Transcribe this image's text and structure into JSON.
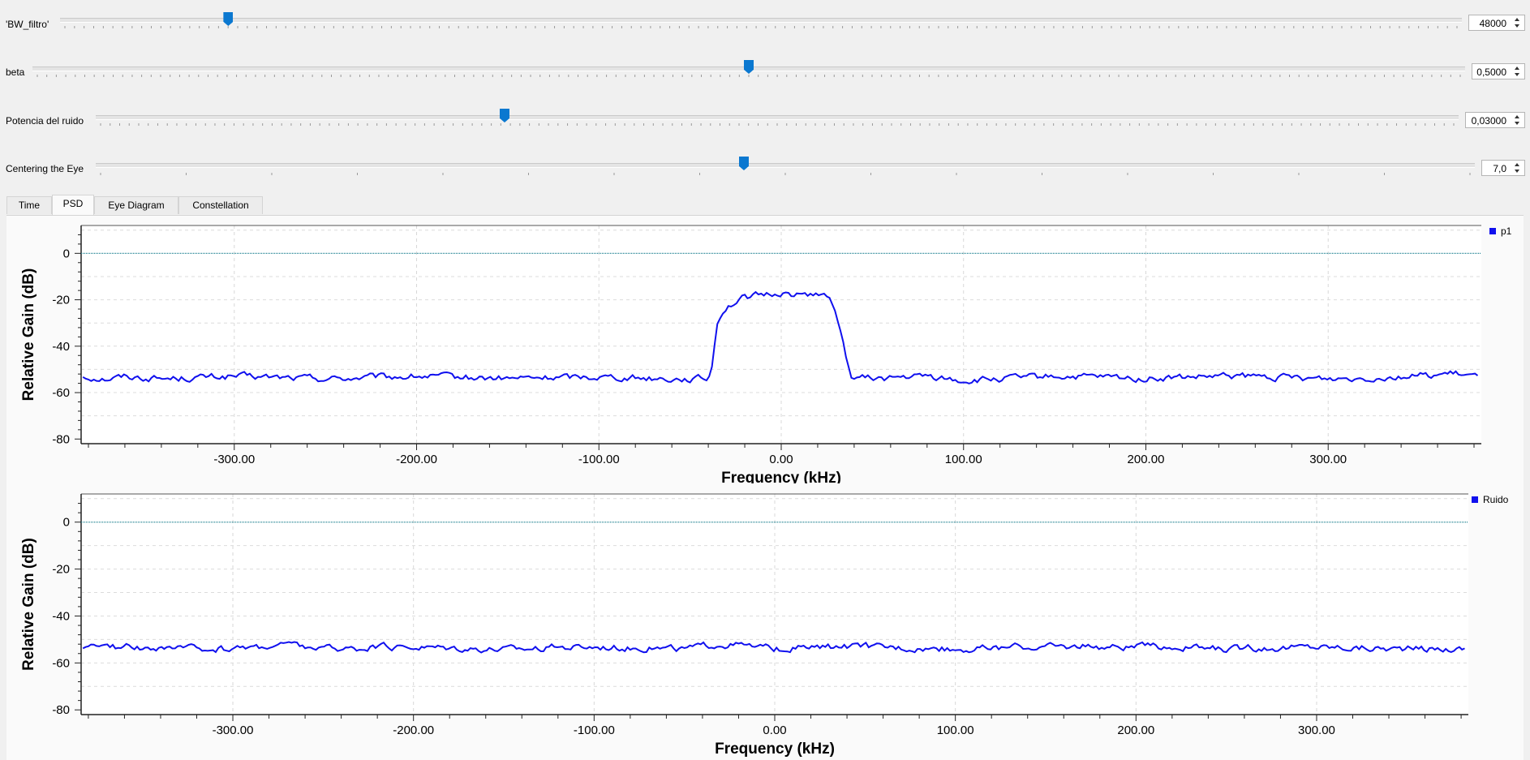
{
  "sliders": [
    {
      "label": "'BW_filtro'",
      "value": "48000",
      "fraction": 0.12
    },
    {
      "label": "beta",
      "value": "0,5000",
      "fraction": 0.5
    },
    {
      "label": "Potencia del ruido",
      "value": "0,03000",
      "fraction": 0.3
    },
    {
      "label": "Centering the Eye",
      "value": "7,0",
      "fraction": 0.47
    }
  ],
  "tabs": [
    {
      "label": "Time",
      "active": false
    },
    {
      "label": "PSD",
      "active": true
    },
    {
      "label": "Eye Diagram",
      "active": false
    },
    {
      "label": "Constellation",
      "active": false
    }
  ],
  "colors": {
    "trace": "#1010ee",
    "reference": "#1a7f8f",
    "handle": "#0b78d0"
  },
  "chart_data": [
    {
      "type": "line",
      "title": "",
      "xlabel": "Frequency (kHz)",
      "ylabel": "Relative Gain (dB)",
      "xlim": [
        -384,
        384
      ],
      "ylim": [
        -82,
        12
      ],
      "xticks": [
        -300,
        -200,
        -100,
        0,
        100,
        200,
        300
      ],
      "xtick_labels": [
        "-300.00",
        "-200.00",
        "-100.00",
        "0.00",
        "100.00",
        "200.00",
        "300.00"
      ],
      "yticks": [
        0,
        -20,
        -40,
        -60,
        -80
      ],
      "ytick_labels": [
        "0",
        "-20",
        "-40",
        "-60",
        "-80"
      ],
      "grid": true,
      "legend": "top-right",
      "reference_line": 0,
      "series": [
        {
          "name": "p1",
          "x": [
            -384,
            -370,
            -360,
            -340,
            -300,
            -250,
            -200,
            -150,
            -100,
            -60,
            -40,
            -38,
            -36,
            -35,
            -33,
            -30,
            -25,
            -20,
            -10,
            0,
            10,
            20,
            25,
            28,
            30,
            33,
            35,
            38,
            50,
            80,
            100,
            150,
            200,
            250,
            300,
            340,
            370,
            384
          ],
          "y": [
            -53,
            -54,
            -53,
            -54,
            -53,
            -54,
            -53,
            -54,
            -53,
            -54,
            -54,
            -49,
            -35,
            -29,
            -26,
            -23,
            -21,
            -19,
            -18,
            -17,
            -18,
            -17,
            -19,
            -22,
            -27,
            -33,
            -44,
            -53,
            -54,
            -53,
            -55,
            -53,
            -54,
            -53,
            -54,
            -53,
            -52,
            -54
          ]
        }
      ]
    },
    {
      "type": "line",
      "title": "",
      "xlabel": "Frequency (kHz)",
      "ylabel": "Relative Gain (dB)",
      "xlim": [
        -384,
        384
      ],
      "ylim": [
        -82,
        12
      ],
      "xticks": [
        -300,
        -200,
        -100,
        0,
        100,
        200,
        300
      ],
      "xtick_labels": [
        "-300.00",
        "-200.00",
        "-100.00",
        "0.00",
        "100.00",
        "200.00",
        "300.00"
      ],
      "yticks": [
        0,
        -20,
        -40,
        -60,
        -80
      ],
      "ytick_labels": [
        "0",
        "-20",
        "-40",
        "-60",
        "-80"
      ],
      "grid": true,
      "legend": "top-right",
      "reference_line": 0,
      "series": [
        {
          "name": "Ruido",
          "x": [
            -384,
            -360,
            -330,
            -300,
            -270,
            -250,
            -200,
            -150,
            -100,
            -50,
            -30,
            0,
            50,
            100,
            150,
            200,
            250,
            300,
            350,
            384
          ],
          "y": [
            -54,
            -53,
            -54,
            -54,
            -52,
            -54,
            -53,
            -54,
            -53,
            -54,
            -52,
            -54,
            -53,
            -54,
            -53,
            -53,
            -54,
            -53,
            -54,
            -54
          ]
        }
      ]
    }
  ]
}
